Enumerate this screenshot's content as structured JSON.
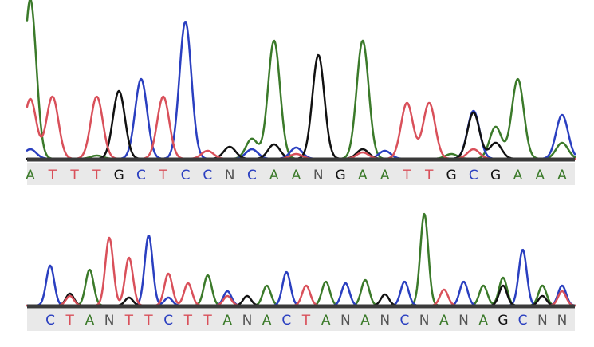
{
  "colors": {
    "A": "#3b7a2a",
    "C": "#2a3fc0",
    "G": "#111111",
    "T": "#d9505a",
    "baseline": "#3a3a3a",
    "strip": "#e9e9e9"
  },
  "chart_data": [
    {
      "type": "line",
      "name": "chromatogram-top",
      "bases": [
        "A",
        "T",
        "T",
        "T",
        "G",
        "C",
        "T",
        "C",
        "C",
        "N",
        "C",
        "A",
        "A",
        "N",
        "G",
        "A",
        "A",
        "T",
        "T",
        "G",
        "C",
        "G",
        "A",
        "A",
        "A"
      ],
      "series": [
        {
          "name": "A",
          "color": "#3b7a2a",
          "peaks": [
            [
              0,
              200
            ],
            [
              3,
              4
            ],
            [
              10,
              25
            ],
            [
              11,
              148
            ],
            [
              15,
              148
            ],
            [
              19,
              6
            ],
            [
              21,
              40
            ],
            [
              22,
              100
            ],
            [
              24,
              20
            ]
          ]
        },
        {
          "name": "C",
          "color": "#2a3fc0",
          "peaks": [
            [
              0,
              12
            ],
            [
              5,
              100
            ],
            [
              7,
              172
            ],
            [
              10,
              12
            ],
            [
              12,
              14
            ],
            [
              16,
              10
            ],
            [
              20,
              60
            ],
            [
              24,
              55
            ]
          ]
        },
        {
          "name": "G",
          "color": "#111111",
          "peaks": [
            [
              4,
              85
            ],
            [
              9,
              15
            ],
            [
              11,
              18
            ],
            [
              13,
              130
            ],
            [
              15,
              12
            ],
            [
              20,
              58
            ],
            [
              21,
              20
            ]
          ]
        },
        {
          "name": "T",
          "color": "#d9505a",
          "peaks": [
            [
              0,
              75
            ],
            [
              1,
              78
            ],
            [
              3,
              78
            ],
            [
              6,
              78
            ],
            [
              8,
              10
            ],
            [
              12,
              6
            ],
            [
              15,
              8
            ],
            [
              17,
              70
            ],
            [
              18,
              70
            ],
            [
              20,
              12
            ]
          ]
        }
      ]
    },
    {
      "type": "line",
      "name": "chromatogram-bottom",
      "bases": [
        "C",
        "T",
        "A",
        "N",
        "T",
        "T",
        "C",
        "T",
        "T",
        "A",
        "N",
        "A",
        "C",
        "T",
        "A",
        "N",
        "A",
        "N",
        "C",
        "N",
        "A",
        "N",
        "A",
        "G",
        "C",
        "N",
        "N"
      ],
      "series": [
        {
          "name": "A",
          "color": "#3b7a2a",
          "peaks": [
            [
              2,
              45
            ],
            [
              8,
              38
            ],
            [
              11,
              25
            ],
            [
              14,
              30
            ],
            [
              16,
              32
            ],
            [
              19,
              115
            ],
            [
              22,
              25
            ],
            [
              23,
              35
            ],
            [
              25,
              25
            ]
          ]
        },
        {
          "name": "C",
          "color": "#2a3fc0",
          "peaks": [
            [
              0,
              50
            ],
            [
              5,
              88
            ],
            [
              6,
              10
            ],
            [
              9,
              18
            ],
            [
              12,
              42
            ],
            [
              15,
              28
            ],
            [
              18,
              30
            ],
            [
              21,
              30
            ],
            [
              24,
              70
            ],
            [
              26,
              25
            ]
          ]
        },
        {
          "name": "G",
          "color": "#111111",
          "peaks": [
            [
              1,
              15
            ],
            [
              4,
              10
            ],
            [
              10,
              12
            ],
            [
              17,
              14
            ],
            [
              23,
              25
            ],
            [
              25,
              12
            ]
          ]
        },
        {
          "name": "T",
          "color": "#d9505a",
          "peaks": [
            [
              1,
              12
            ],
            [
              3,
              85
            ],
            [
              4,
              60
            ],
            [
              6,
              40
            ],
            [
              7,
              28
            ],
            [
              9,
              12
            ],
            [
              13,
              25
            ],
            [
              20,
              20
            ],
            [
              26,
              18
            ]
          ]
        }
      ]
    }
  ]
}
